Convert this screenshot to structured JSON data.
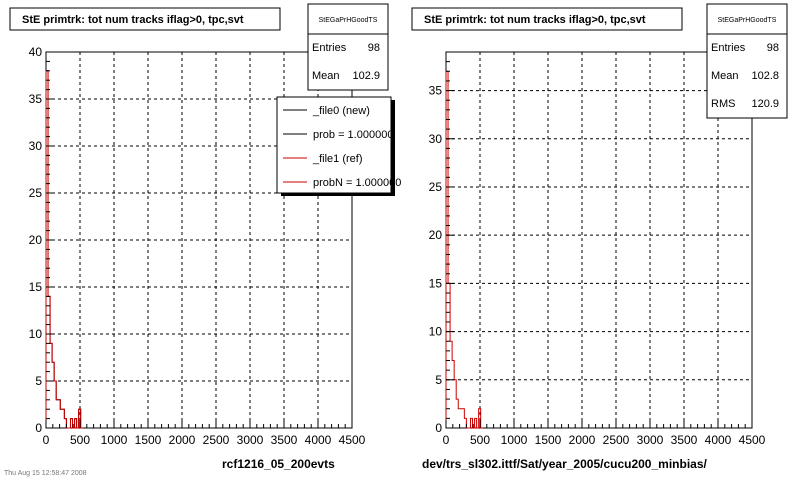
{
  "panels": [
    {
      "title": "StE primtrk: tot num tracks iflag>0, tpc,svt",
      "stats": {
        "name": "StEGaPrHGoodTS",
        "rows": [
          {
            "label": "Entries",
            "value": "98"
          },
          {
            "label": "Mean",
            "value": "102.9"
          }
        ]
      },
      "legend": [
        {
          "label": "_file0 (new)",
          "color": "#000000"
        },
        {
          "label": "prob = 1.000000",
          "color": "#000000"
        },
        {
          "label": "_file1 (ref)",
          "color": "#cc0000"
        },
        {
          "label": "probN = 1.000000",
          "color": "#cc0000"
        }
      ],
      "footer": "rcf1216_05_200evts",
      "corner_text": "Thu Aug 15 12:58:47 2008"
    },
    {
      "title": "StE primtrk: tot num tracks iflag>0, tpc,svt",
      "stats": {
        "name": "StEGaPrHGoodTS",
        "rows": [
          {
            "label": "Entries",
            "value": "98"
          },
          {
            "label": "Mean",
            "value": "102.8"
          },
          {
            "label": "RMS",
            "value": "120.9"
          }
        ]
      },
      "legend": [],
      "footer": "dev/trs_sl302.ittf/Sat/year_2005/cucu200_minbias/",
      "corner_text": ""
    }
  ],
  "chart_data": [
    {
      "type": "histogram",
      "title": "StE primtrk: tot num tracks iflag>0, tpc,svt",
      "xlim": [
        0,
        4500
      ],
      "ylim": [
        0,
        40
      ],
      "xticks": [
        0,
        500,
        1000,
        1500,
        2000,
        2500,
        3000,
        3500,
        4000,
        4500
      ],
      "yticks": [
        0,
        5,
        10,
        15,
        20,
        25,
        30,
        35,
        40
      ],
      "grid": true,
      "legend_position": "top-right",
      "bin_edges": [
        0,
        30,
        60,
        90,
        120,
        150,
        180,
        210,
        240,
        270,
        300,
        330,
        360,
        390,
        420,
        450,
        480,
        510,
        540
      ],
      "series": [
        {
          "name": "_file0 (new)",
          "color": "#000000",
          "values": [
            38,
            14,
            9,
            7,
            5,
            3,
            3,
            2,
            2,
            1,
            0,
            0,
            1,
            0,
            1,
            0,
            2,
            0
          ]
        },
        {
          "name": "_file1 (ref)",
          "color": "#cc0000",
          "values": [
            38,
            14,
            9,
            7,
            5,
            3,
            3,
            2,
            2,
            1,
            0,
            0,
            1,
            0,
            1,
            0,
            2,
            0
          ]
        }
      ]
    },
    {
      "type": "histogram",
      "title": "StE primtrk: tot num tracks iflag>0, tpc,svt",
      "xlim": [
        0,
        4500
      ],
      "ylim": [
        0,
        39
      ],
      "xticks": [
        0,
        500,
        1000,
        1500,
        2000,
        2500,
        3000,
        3500,
        4000,
        4500
      ],
      "yticks": [
        0,
        5,
        10,
        15,
        20,
        25,
        30,
        35
      ],
      "grid": true,
      "bin_edges": [
        0,
        30,
        60,
        90,
        120,
        150,
        180,
        210,
        240,
        270,
        300,
        330,
        360,
        390,
        420,
        450,
        480,
        510,
        540
      ],
      "series": [
        {
          "name": "",
          "color": "#cc0000",
          "values": [
            37,
            15,
            9,
            7,
            5,
            3,
            2,
            2,
            2,
            1,
            0,
            0,
            1,
            0,
            1,
            0,
            2,
            0
          ]
        }
      ]
    }
  ]
}
